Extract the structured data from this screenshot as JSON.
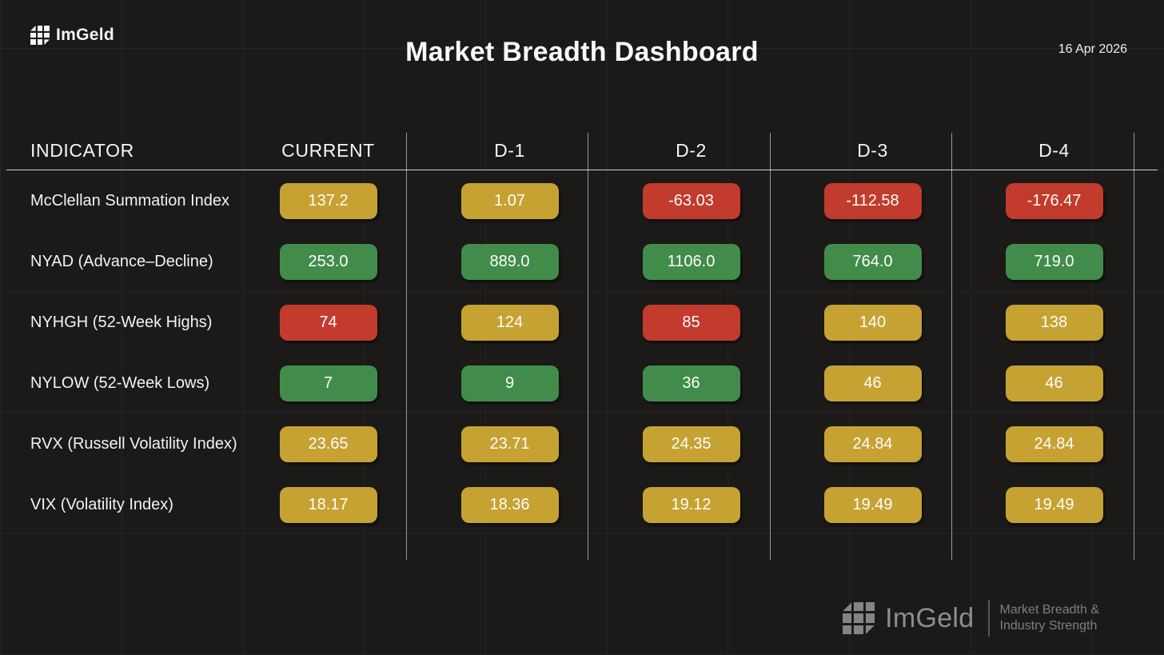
{
  "header": {
    "logo": "ImGeld",
    "title": "Market Breadth Dashboard",
    "date": "16 Apr 2026"
  },
  "status_colors": {
    "green": "#418c4b",
    "yellow": "#c6a233",
    "red": "#c23b2d"
  },
  "table": {
    "headers": {
      "indicator": "INDICATOR",
      "current": "CURRENT",
      "d1": "D-1",
      "d2": "D-2",
      "d3": "D-3",
      "d4": "D-4"
    },
    "rows": [
      {
        "indicator": "McClellan Summation Index",
        "values": [
          {
            "text": "137.2",
            "status": "yellow"
          },
          {
            "text": "1.07",
            "status": "yellow"
          },
          {
            "text": "-63.03",
            "status": "red"
          },
          {
            "text": "-112.58",
            "status": "red"
          },
          {
            "text": "-176.47",
            "status": "red"
          }
        ]
      },
      {
        "indicator": "NYAD (Advance–Decline)",
        "values": [
          {
            "text": "253.0",
            "status": "green"
          },
          {
            "text": "889.0",
            "status": "green"
          },
          {
            "text": "1106.0",
            "status": "green"
          },
          {
            "text": "764.0",
            "status": "green"
          },
          {
            "text": "719.0",
            "status": "green"
          }
        ]
      },
      {
        "indicator": "NYHGH (52-Week Highs)",
        "values": [
          {
            "text": "74",
            "status": "red"
          },
          {
            "text": "124",
            "status": "yellow"
          },
          {
            "text": "85",
            "status": "red"
          },
          {
            "text": "140",
            "status": "yellow"
          },
          {
            "text": "138",
            "status": "yellow"
          }
        ]
      },
      {
        "indicator": "NYLOW (52-Week Lows)",
        "values": [
          {
            "text": "7",
            "status": "green"
          },
          {
            "text": "9",
            "status": "green"
          },
          {
            "text": "36",
            "status": "green"
          },
          {
            "text": "46",
            "status": "yellow"
          },
          {
            "text": "46",
            "status": "yellow"
          }
        ]
      },
      {
        "indicator": "RVX (Russell Volatility Index)",
        "values": [
          {
            "text": "23.65",
            "status": "yellow"
          },
          {
            "text": "23.71",
            "status": "yellow"
          },
          {
            "text": "24.35",
            "status": "yellow"
          },
          {
            "text": "24.84",
            "status": "yellow"
          },
          {
            "text": "24.84",
            "status": "yellow"
          }
        ]
      },
      {
        "indicator": "VIX (Volatility Index)",
        "values": [
          {
            "text": "18.17",
            "status": "yellow"
          },
          {
            "text": "18.36",
            "status": "yellow"
          },
          {
            "text": "19.12",
            "status": "yellow"
          },
          {
            "text": "19.49",
            "status": "yellow"
          },
          {
            "text": "19.49",
            "status": "yellow"
          }
        ]
      }
    ]
  },
  "footer": {
    "logo": "ImGeld",
    "tagline_line1": "Market Breadth &",
    "tagline_line2": "Industry Strength"
  },
  "chart_data": {
    "type": "table",
    "title": "Market Breadth Dashboard",
    "date": "16 Apr 2026",
    "columns": [
      "INDICATOR",
      "CURRENT",
      "D-1",
      "D-2",
      "D-3",
      "D-4"
    ],
    "rows": [
      {
        "indicator": "McClellan Summation Index",
        "values": [
          137.2,
          1.07,
          -63.03,
          -112.58,
          -176.47
        ],
        "statuses": [
          "yellow",
          "yellow",
          "red",
          "red",
          "red"
        ]
      },
      {
        "indicator": "NYAD (Advance–Decline)",
        "values": [
          253.0,
          889.0,
          1106.0,
          764.0,
          719.0
        ],
        "statuses": [
          "green",
          "green",
          "green",
          "green",
          "green"
        ]
      },
      {
        "indicator": "NYHGH (52-Week Highs)",
        "values": [
          74,
          124,
          85,
          140,
          138
        ],
        "statuses": [
          "red",
          "yellow",
          "red",
          "yellow",
          "yellow"
        ]
      },
      {
        "indicator": "NYLOW (52-Week Lows)",
        "values": [
          7,
          9,
          36,
          46,
          46
        ],
        "statuses": [
          "green",
          "green",
          "green",
          "yellow",
          "yellow"
        ]
      },
      {
        "indicator": "RVX (Russell Volatility Index)",
        "values": [
          23.65,
          23.71,
          24.35,
          24.84,
          24.84
        ],
        "statuses": [
          "yellow",
          "yellow",
          "yellow",
          "yellow",
          "yellow"
        ]
      },
      {
        "indicator": "VIX (Volatility Index)",
        "values": [
          18.17,
          18.36,
          19.12,
          19.49,
          19.49
        ],
        "statuses": [
          "yellow",
          "yellow",
          "yellow",
          "yellow",
          "yellow"
        ]
      }
    ],
    "status_colors": {
      "green": "#418c4b",
      "yellow": "#c6a233",
      "red": "#c23b2d"
    }
  }
}
